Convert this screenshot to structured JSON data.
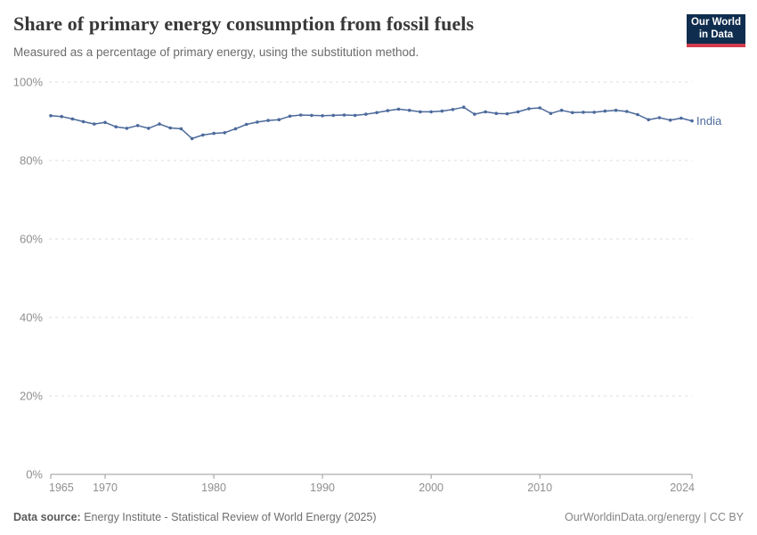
{
  "header": {
    "title": "Share of primary energy consumption from fossil fuels",
    "subtitle": "Measured as a percentage of primary energy, using the substitution method.",
    "logo": {
      "line1": "Our World",
      "line2": "in Data",
      "bg_color": "#0f2d4e",
      "accent_color": "#d13b4b"
    }
  },
  "chart_data": {
    "type": "line",
    "title": "Share of primary energy consumption from fossil fuels",
    "xlabel": "",
    "ylabel": "",
    "xlim": [
      1965,
      2024
    ],
    "ylim": [
      0,
      100
    ],
    "grid": "horizontal-dashed",
    "legend_position": "end-of-line",
    "x_ticks": [
      1965,
      1970,
      1980,
      1990,
      2000,
      2010,
      2024
    ],
    "y_ticks": [
      0,
      20,
      40,
      60,
      80,
      100
    ],
    "y_tick_suffix": "%",
    "colors": {
      "grid": "#dddddd",
      "axis": "#999999",
      "tick_label": "#8f8f8f"
    },
    "series": [
      {
        "name": "India",
        "color": "#4C6A9C",
        "x": [
          1965,
          1966,
          1967,
          1968,
          1969,
          1970,
          1971,
          1972,
          1973,
          1974,
          1975,
          1976,
          1977,
          1978,
          1979,
          1980,
          1981,
          1982,
          1983,
          1984,
          1985,
          1986,
          1987,
          1988,
          1989,
          1990,
          1991,
          1992,
          1993,
          1994,
          1995,
          1996,
          1997,
          1998,
          1999,
          2000,
          2001,
          2002,
          2003,
          2004,
          2005,
          2006,
          2007,
          2008,
          2009,
          2010,
          2011,
          2012,
          2013,
          2014,
          2015,
          2016,
          2017,
          2018,
          2019,
          2020,
          2021,
          2022,
          2023,
          2024
        ],
        "values": [
          91.4,
          91.2,
          90.6,
          89.9,
          89.3,
          89.7,
          88.6,
          88.2,
          88.9,
          88.2,
          89.3,
          88.3,
          88.1,
          85.6,
          86.5,
          86.9,
          87.1,
          88.1,
          89.2,
          89.8,
          90.2,
          90.4,
          91.3,
          91.6,
          91.5,
          91.4,
          91.5,
          91.6,
          91.5,
          91.8,
          92.2,
          92.7,
          93.1,
          92.8,
          92.4,
          92.4,
          92.6,
          93.0,
          93.6,
          91.8,
          92.4,
          92.0,
          91.9,
          92.4,
          93.2,
          93.4,
          92.0,
          92.8,
          92.2,
          92.3,
          92.3,
          92.6,
          92.8,
          92.5,
          91.7,
          90.4,
          90.9,
          90.3,
          90.8,
          90.1
        ]
      }
    ]
  },
  "footer": {
    "datasource_label": "Data source:",
    "datasource_text": " Energy Institute - Statistical Review of World Energy (2025)",
    "link_text": "OurWorldinData.org/energy | CC BY"
  }
}
